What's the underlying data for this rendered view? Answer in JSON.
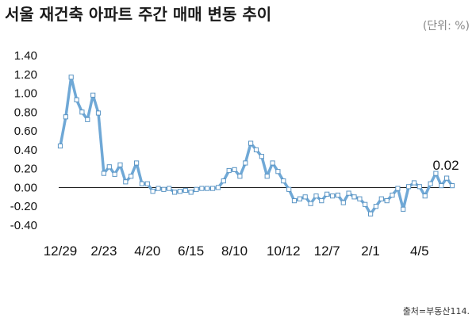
{
  "header": {
    "title": "서울 재건축 아파트 주간 매매 변동 추이",
    "unit": "(단위: %)"
  },
  "footer": {
    "source": "출처=부동산114."
  },
  "colors": {
    "line": "#6fa8d6",
    "marker": "#5b95c4",
    "zero_line": "#1f1f1f"
  },
  "chart_data": {
    "type": "line",
    "title": "서울 재건축 아파트 주간 매매 변동 추이",
    "xlabel": "",
    "ylabel": "",
    "ylim": [
      -0.4,
      1.4
    ],
    "yticks": [
      "1.40",
      "1.20",
      "1.00",
      "0.80",
      "0.60",
      "0.40",
      "0.20",
      "0.00",
      "-0.20",
      "-0.40"
    ],
    "xtick_labels": [
      {
        "index": 0,
        "label": "12/29"
      },
      {
        "index": 8,
        "label": "2/23"
      },
      {
        "index": 16,
        "label": "4/20"
      },
      {
        "index": 24,
        "label": "6/15"
      },
      {
        "index": 32,
        "label": "8/10"
      },
      {
        "index": 41,
        "label": "10/12"
      },
      {
        "index": 49,
        "label": "12/7"
      },
      {
        "index": 57,
        "label": "2/1"
      },
      {
        "index": 66,
        "label": "4/5"
      }
    ],
    "grid": false,
    "legend": "none",
    "series": [
      {
        "values": [
          0.44,
          0.75,
          1.17,
          0.93,
          0.8,
          0.72,
          0.98,
          0.79,
          0.15,
          0.22,
          0.14,
          0.24,
          0.06,
          0.12,
          0.26,
          0.04,
          0.04,
          -0.04,
          -0.01,
          -0.02,
          -0.01,
          -0.05,
          -0.04,
          -0.03,
          -0.05,
          -0.02,
          -0.01,
          -0.01,
          -0.01,
          0.0,
          0.07,
          0.18,
          0.19,
          0.12,
          0.26,
          0.47,
          0.4,
          0.33,
          0.12,
          0.26,
          0.17,
          0.07,
          -0.02,
          -0.14,
          -0.12,
          -0.1,
          -0.17,
          -0.09,
          -0.14,
          -0.07,
          -0.09,
          -0.08,
          -0.16,
          -0.06,
          -0.1,
          -0.12,
          -0.18,
          -0.28,
          -0.2,
          -0.12,
          -0.14,
          -0.08,
          -0.01,
          -0.23,
          0.01,
          0.05,
          0.01,
          -0.09,
          0.04,
          0.15,
          0.02,
          0.1,
          0.02
        ],
        "last_label": "0.02"
      }
    ]
  }
}
